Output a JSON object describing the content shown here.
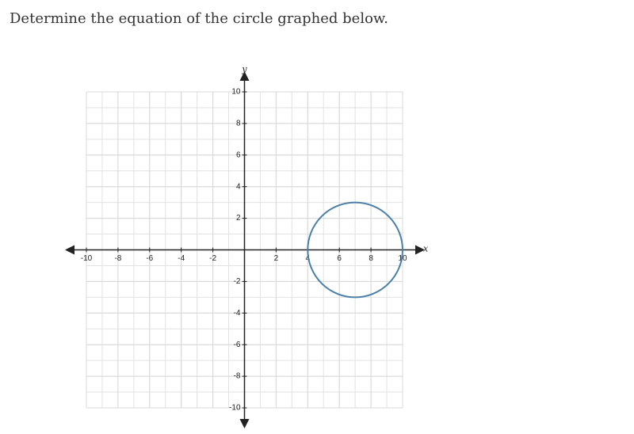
{
  "question": "Determine the equation of the circle graphed below.",
  "chart_data": {
    "type": "circle",
    "x_label": "x",
    "y_label": "y",
    "xlim": [
      -10,
      10
    ],
    "ylim": [
      -10,
      10
    ],
    "xticks": [
      -10,
      -8,
      -6,
      -4,
      -2,
      2,
      4,
      6,
      8,
      10
    ],
    "yticks": [
      -10,
      -8,
      -6,
      -4,
      -2,
      2,
      4,
      6,
      8,
      10
    ],
    "grid": true,
    "center_x": 7,
    "center_y": 0,
    "radius": 3,
    "color": "#4a7fa8"
  }
}
